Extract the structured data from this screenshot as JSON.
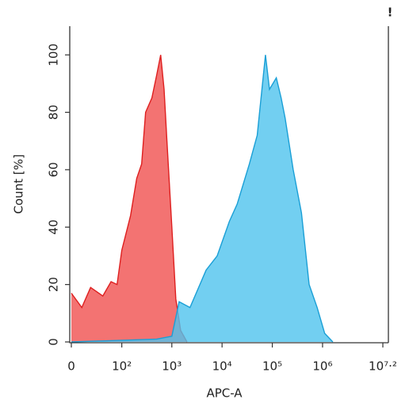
{
  "chart_data": {
    "type": "area",
    "x_label": "APC-A",
    "y_label": "Count [%]",
    "annotation": "!",
    "xscale": "biexponential",
    "xlim": [
      0,
      15848932
    ],
    "ylim": [
      0,
      110
    ],
    "xticks": [
      0,
      {
        "value": 100,
        "label": "10²"
      },
      {
        "value": 1000,
        "label": "10³"
      },
      {
        "value": 10000,
        "label": "10⁴"
      },
      {
        "value": 100000,
        "label": "10⁵"
      },
      {
        "value": 1000000,
        "label": "10⁶"
      },
      {
        "value": 15848932,
        "label": "10⁷·²"
      }
    ],
    "yticks": [
      0,
      20,
      40,
      60,
      80,
      100
    ],
    "series": [
      {
        "color": "#f0504f",
        "line_color": "#de1f1f",
        "x": [
          0,
          10,
          20,
          40,
          60,
          80,
          100,
          150,
          200,
          250,
          300,
          400,
          500,
          600,
          700,
          800,
          1000,
          1200,
          1500,
          2000
        ],
        "values": [
          17,
          12,
          19,
          16,
          21,
          20,
          32,
          44,
          57,
          62,
          80,
          85,
          93,
          100,
          88,
          70,
          40,
          15,
          4,
          0
        ]
      },
      {
        "color": "#4fc3ee",
        "line_color": "#1a9fd6",
        "x": [
          0,
          500,
          1000,
          1400,
          2300,
          4800,
          8000,
          14000,
          20000,
          35000,
          50000,
          73000,
          88000,
          120000,
          150000,
          180000,
          260000,
          380000,
          540000,
          780000,
          1100000,
          1600000
        ],
        "values": [
          0,
          1,
          2,
          14,
          12,
          25,
          30,
          42,
          48,
          62,
          72,
          100,
          88,
          92,
          85,
          78,
          60,
          45,
          20,
          12,
          3,
          0
        ]
      }
    ]
  }
}
